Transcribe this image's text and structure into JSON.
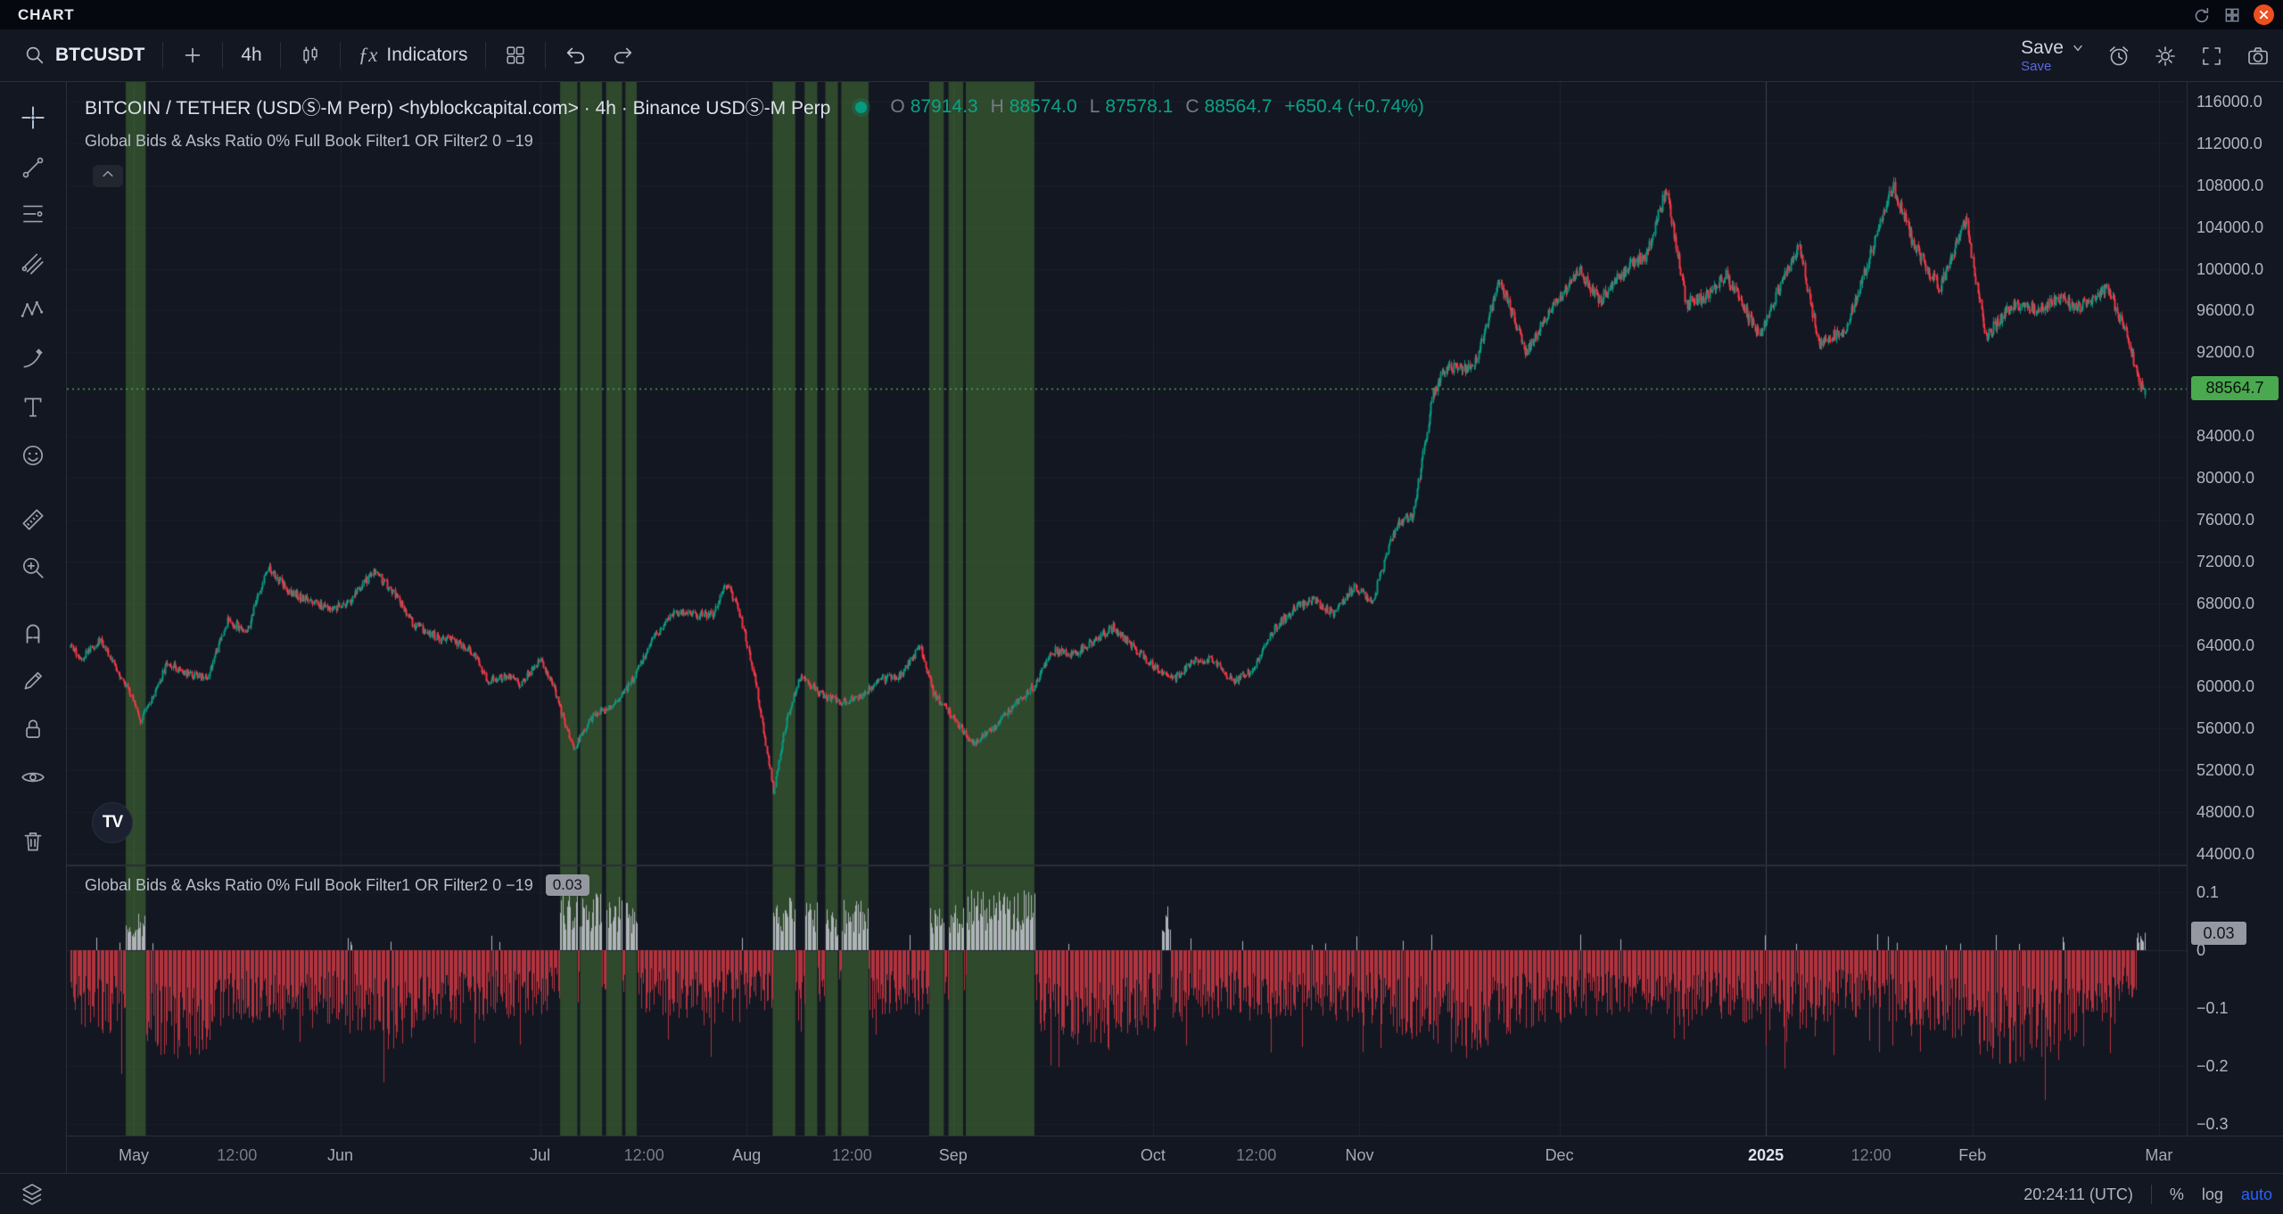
{
  "window": {
    "title": "CHART"
  },
  "top_toolbar": {
    "symbol": "BTCUSDT",
    "interval": "4h",
    "indicators_label": "Indicators",
    "save_label": "Save",
    "save_sublabel": "Save"
  },
  "left_toolbar": {
    "tools": [
      "crosshair",
      "trend-line",
      "fib-retracement",
      "pitchfork",
      "xabcd-pattern",
      "brush",
      "text",
      "emoji",
      "measure-ruler",
      "zoom-in",
      "magnet",
      "edit-pencil",
      "lock-all-drawings",
      "hide-all-drawings",
      "remove-all-drawings",
      "object-tree"
    ]
  },
  "legend": {
    "title": "BITCOIN / TETHER (USDⓈ-M Perp) <hyblockcapital.com> · 4h · Binance USDⓈ-M Perp",
    "open_label": "O",
    "open_value": "87914.3",
    "high_label": "H",
    "high_value": "88574.0",
    "low_label": "L",
    "low_value": "87578.1",
    "close_label": "C",
    "close_value": "88564.7",
    "change_value": "+650.4 (+0.74%)",
    "overlay_indicator": "Global Bids & Asks Ratio 0% Full Book Filter1 OR Filter2 0 −19"
  },
  "lower_pane": {
    "indicator_label": "Global Bids & Asks Ratio 0% Full Book Filter1 OR Filter2 0 −19",
    "indicator_value": "0.03"
  },
  "price_axis": {
    "current_price": "88564.7",
    "ticks": [
      {
        "label": "116000.0",
        "price": 116000
      },
      {
        "label": "112000.0",
        "price": 112000
      },
      {
        "label": "108000.0",
        "price": 108000
      },
      {
        "label": "104000.0",
        "price": 104000
      },
      {
        "label": "100000.0",
        "price": 100000
      },
      {
        "label": "96000.0",
        "price": 96000
      },
      {
        "label": "92000.0",
        "price": 92000
      },
      {
        "label": "84000.0",
        "price": 84000
      },
      {
        "label": "80000.0",
        "price": 80000
      },
      {
        "label": "76000.0",
        "price": 76000
      },
      {
        "label": "72000.0",
        "price": 72000
      },
      {
        "label": "68000.0",
        "price": 68000
      },
      {
        "label": "64000.0",
        "price": 64000
      },
      {
        "label": "60000.0",
        "price": 60000
      },
      {
        "label": "56000.0",
        "price": 56000
      },
      {
        "label": "52000.0",
        "price": 52000
      },
      {
        "label": "48000.0",
        "price": 48000
      },
      {
        "label": "44000.0",
        "price": 44000
      }
    ]
  },
  "indicator_axis": {
    "current_value": "0.03",
    "ticks": [
      {
        "label": "0.1",
        "value": 0.1
      },
      {
        "label": "0",
        "value": 0
      },
      {
        "label": "−0.1",
        "value": -0.1
      },
      {
        "label": "−0.2",
        "value": -0.2
      },
      {
        "label": "−0.3",
        "value": -0.3
      }
    ]
  },
  "time_axis": {
    "ticks": [
      {
        "label": "May",
        "day": 0,
        "kind": "month"
      },
      {
        "label": "12:00",
        "day": 15.5,
        "kind": "time"
      },
      {
        "label": "Jun",
        "day": 31,
        "kind": "month"
      },
      {
        "label": "Jul",
        "day": 61,
        "kind": "month"
      },
      {
        "label": "12:00",
        "day": 76.6,
        "kind": "time"
      },
      {
        "label": "Aug",
        "day": 92,
        "kind": "month"
      },
      {
        "label": "12:00",
        "day": 107.8,
        "kind": "time"
      },
      {
        "label": "Sep",
        "day": 123,
        "kind": "month"
      },
      {
        "label": "Oct",
        "day": 153,
        "kind": "month"
      },
      {
        "label": "12:00",
        "day": 168.5,
        "kind": "time"
      },
      {
        "label": "Nov",
        "day": 184,
        "kind": "month"
      },
      {
        "label": "Dec",
        "day": 214,
        "kind": "month"
      },
      {
        "label": "2025",
        "day": 245,
        "kind": "year"
      },
      {
        "label": "12:00",
        "day": 260.8,
        "kind": "time"
      },
      {
        "label": "Feb",
        "day": 276,
        "kind": "month"
      },
      {
        "label": "Mar",
        "day": 304,
        "kind": "month"
      }
    ]
  },
  "status_bar": {
    "clock": "20:24:11 (UTC)",
    "percent_label": "%",
    "log_label": "log",
    "auto_label": "auto"
  },
  "colors": {
    "up": "#089981",
    "down": "#f23645",
    "accent_blue": "#2962ff",
    "price_line_green": "#4aa94e",
    "band_green": "rgba(110,190,70,0.30)",
    "hist_negative": "#b2333e",
    "hist_positive": "#b0b3ba",
    "gray_tag_bg": "#9598a1"
  },
  "chart_data": [
    {
      "type": "candlestick",
      "title": "BITCOIN / TETHER (USDⓈ-M Perp)",
      "symbol": "BTCUSDT",
      "timeframe": "4h",
      "exchange": "Binance USDⓈ-M Perp",
      "ylim": [
        44000,
        116000
      ],
      "y_tick_step": 4000,
      "x_range_days": [
        -9.5,
        302
      ],
      "day_zero_date": "2024-05-01",
      "current_price_line": 88564.7,
      "last_candle": {
        "open": 87914.3,
        "high": 88574.0,
        "low": 87578.1,
        "close": 88564.7,
        "change": "+650.4 (+0.74%)"
      },
      "price_path": [
        [
          -10,
          64000
        ],
        [
          -8,
          62800
        ],
        [
          -5,
          64500
        ],
        [
          -2,
          61000
        ],
        [
          0,
          58500
        ],
        [
          1,
          56800
        ],
        [
          3,
          59100
        ],
        [
          5,
          62300
        ],
        [
          8,
          61200
        ],
        [
          11,
          60900
        ],
        [
          14,
          66300
        ],
        [
          17,
          65300
        ],
        [
          20,
          71400
        ],
        [
          23,
          69300
        ],
        [
          26,
          68200
        ],
        [
          29,
          67600
        ],
        [
          32,
          67800
        ],
        [
          36,
          71100
        ],
        [
          39,
          69000
        ],
        [
          42,
          66000
        ],
        [
          45,
          64900
        ],
        [
          48,
          64300
        ],
        [
          51,
          63200
        ],
        [
          53,
          60600
        ],
        [
          56,
          61000
        ],
        [
          58,
          60200
        ],
        [
          61,
          62700
        ],
        [
          63,
          60000
        ],
        [
          65,
          55800
        ],
        [
          66,
          54100
        ],
        [
          69,
          57400
        ],
        [
          72,
          58000
        ],
        [
          75,
          60800
        ],
        [
          78,
          64700
        ],
        [
          81,
          67200
        ],
        [
          84,
          66800
        ],
        [
          87,
          67000
        ],
        [
          89,
          69900
        ],
        [
          91,
          66800
        ],
        [
          93,
          61500
        ],
        [
          96,
          50000
        ],
        [
          98,
          57000
        ],
        [
          100,
          61000
        ],
        [
          103,
          59400
        ],
        [
          106,
          58400
        ],
        [
          109,
          59000
        ],
        [
          112,
          60600
        ],
        [
          115,
          61000
        ],
        [
          118,
          63900
        ],
        [
          120,
          59400
        ],
        [
          123,
          57000
        ],
        [
          126,
          54500
        ],
        [
          129,
          56100
        ],
        [
          132,
          58200
        ],
        [
          135,
          60000
        ],
        [
          138,
          63500
        ],
        [
          141,
          63100
        ],
        [
          144,
          64300
        ],
        [
          147,
          65700
        ],
        [
          150,
          63800
        ],
        [
          153,
          62000
        ],
        [
          156,
          60700
        ],
        [
          159,
          62500
        ],
        [
          162,
          62600
        ],
        [
          165,
          60500
        ],
        [
          168,
          61600
        ],
        [
          171,
          65400
        ],
        [
          174,
          67400
        ],
        [
          177,
          68300
        ],
        [
          180,
          67000
        ],
        [
          183,
          69500
        ],
        [
          186,
          68200
        ],
        [
          188,
          72800
        ],
        [
          190,
          75900
        ],
        [
          192,
          76300
        ],
        [
          195,
          88000
        ],
        [
          197,
          90600
        ],
        [
          201,
          90300
        ],
        [
          205,
          98900
        ],
        [
          209,
          92000
        ],
        [
          213,
          96400
        ],
        [
          217,
          99800
        ],
        [
          220,
          96900
        ],
        [
          224,
          100100
        ],
        [
          227,
          101300
        ],
        [
          230,
          107500
        ],
        [
          233,
          96700
        ],
        [
          236,
          97300
        ],
        [
          239,
          99400
        ],
        [
          242,
          95800
        ],
        [
          244,
          93500
        ],
        [
          247,
          98200
        ],
        [
          250,
          102100
        ],
        [
          253,
          92500
        ],
        [
          257,
          94500
        ],
        [
          260,
          100000
        ],
        [
          264,
          108000
        ],
        [
          267,
          102500
        ],
        [
          271,
          98100
        ],
        [
          275,
          104700
        ],
        [
          278,
          93500
        ],
        [
          282,
          96600
        ],
        [
          286,
          96200
        ],
        [
          289,
          97000
        ],
        [
          292,
          96300
        ],
        [
          296,
          98300
        ],
        [
          299,
          94000
        ],
        [
          300,
          91500
        ],
        [
          301,
          88900
        ],
        [
          302,
          88560
        ]
      ],
      "highlight_bands": [
        [
          -1.2,
          1.8
        ],
        [
          64.0,
          66.6
        ],
        [
          67.0,
          70.3
        ],
        [
          70.9,
          73.3
        ],
        [
          73.8,
          75.5
        ],
        [
          95.9,
          99.3
        ],
        [
          100.7,
          102.6
        ],
        [
          103.8,
          105.7
        ],
        [
          106.2,
          110.3
        ],
        [
          119.4,
          121.6
        ],
        [
          122.3,
          124.5
        ],
        [
          124.9,
          135.2
        ]
      ]
    },
    {
      "type": "bar",
      "title": "Global Bids & Asks Ratio 0% Full Book Filter1 OR Filter2 0 −19",
      "ylim": [
        -0.32,
        0.145
      ],
      "zero_line": 0,
      "last_value": 0.03,
      "positive_zones": [
        [
          -1.2,
          1.8,
          0.06
        ],
        [
          64.0,
          66.6,
          0.1
        ],
        [
          67.0,
          70.3,
          0.09
        ],
        [
          70.9,
          73.3,
          0.085
        ],
        [
          73.8,
          75.5,
          0.075
        ],
        [
          95.9,
          99.3,
          0.09
        ],
        [
          100.7,
          102.6,
          0.075
        ],
        [
          103.8,
          105.7,
          0.065
        ],
        [
          106.2,
          110.3,
          0.08
        ],
        [
          119.4,
          121.6,
          0.07
        ],
        [
          122.3,
          124.5,
          0.08
        ],
        [
          124.9,
          135.2,
          0.095
        ],
        [
          154.3,
          155.6,
          0.08
        ],
        [
          300.6,
          301.8,
          0.035
        ]
      ],
      "negative_depth_path": [
        [
          -10,
          0.11
        ],
        [
          0,
          0.15
        ],
        [
          8,
          0.19
        ],
        [
          15,
          0.11
        ],
        [
          22,
          0.13
        ],
        [
          30,
          0.12
        ],
        [
          38,
          0.16
        ],
        [
          46,
          0.12
        ],
        [
          55,
          0.11
        ],
        [
          62,
          0.1
        ],
        [
          70,
          0.09
        ],
        [
          78,
          0.1
        ],
        [
          86,
          0.12
        ],
        [
          95,
          0.1
        ],
        [
          103,
          0.09
        ],
        [
          112,
          0.11
        ],
        [
          120,
          0.1
        ],
        [
          128,
          0.11
        ],
        [
          137,
          0.13
        ],
        [
          145,
          0.17
        ],
        [
          152,
          0.13
        ],
        [
          160,
          0.11
        ],
        [
          168,
          0.12
        ],
        [
          176,
          0.1
        ],
        [
          184,
          0.12
        ],
        [
          192,
          0.14
        ],
        [
          200,
          0.17
        ],
        [
          208,
          0.13
        ],
        [
          216,
          0.11
        ],
        [
          224,
          0.1
        ],
        [
          232,
          0.12
        ],
        [
          240,
          0.11
        ],
        [
          248,
          0.13
        ],
        [
          256,
          0.11
        ],
        [
          264,
          0.12
        ],
        [
          272,
          0.13
        ],
        [
          280,
          0.2
        ],
        [
          286,
          0.17
        ],
        [
          292,
          0.15
        ],
        [
          297,
          0.12
        ],
        [
          301,
          0.07
        ]
      ]
    }
  ]
}
